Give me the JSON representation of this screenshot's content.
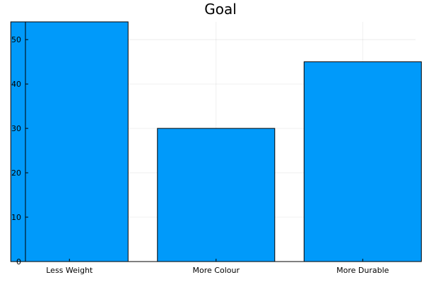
{
  "chart_data": {
    "type": "bar",
    "title": "Goal",
    "categories": [
      "Less Weight",
      "More Colour",
      "More Durable"
    ],
    "values": [
      54,
      30,
      45
    ],
    "ylim": [
      0,
      54
    ],
    "yticks": [
      0,
      10,
      20,
      30,
      40,
      50
    ],
    "grid": true,
    "legend": "none",
    "bar_color": "#009AFA"
  }
}
